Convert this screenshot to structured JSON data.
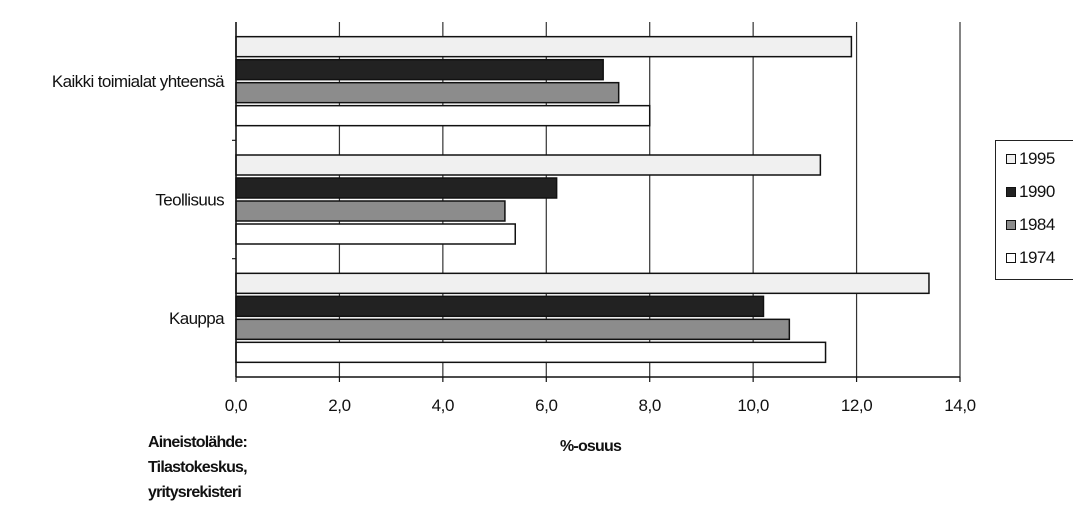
{
  "chart_data": {
    "type": "bar",
    "orientation": "horizontal",
    "categories": [
      "Kaikki toimialat yhteensä",
      "Teollisuus",
      "Kauppa"
    ],
    "series": [
      {
        "name": "1995",
        "values": [
          11.9,
          11.3,
          13.4
        ],
        "color": "#f0f0f0"
      },
      {
        "name": "1990",
        "values": [
          7.1,
          6.2,
          10.2
        ],
        "color": "#222222"
      },
      {
        "name": "1984",
        "values": [
          7.4,
          5.2,
          10.7
        ],
        "color": "#8c8c8c"
      },
      {
        "name": "1974",
        "values": [
          8.0,
          5.4,
          11.4
        ],
        "color": "#ffffff"
      }
    ],
    "xlim": [
      0,
      14
    ],
    "xticks": [
      "0,0",
      "2,0",
      "4,0",
      "6,0",
      "8,0",
      "10,0",
      "12,0",
      "14,0"
    ],
    "xlabel": "%-osuus",
    "grid": "vertical",
    "legend_position": "right"
  },
  "source_lines": [
    "Aineistolähde:",
    "Tilastokeskus,",
    "yritysrekisteri"
  ]
}
